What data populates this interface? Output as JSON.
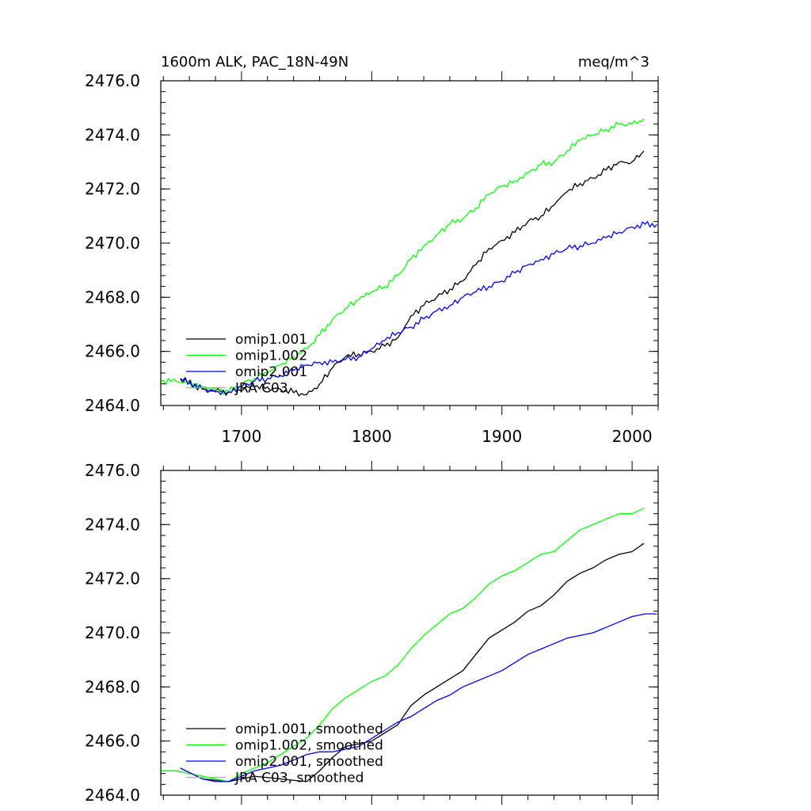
{
  "chart_data": [
    {
      "type": "line",
      "title": "1600m ALK, PAC_18N-49N",
      "units": "meq/m^3",
      "xlabel": "",
      "ylabel": "",
      "xlim": [
        1638,
        2020
      ],
      "ylim": [
        2464.0,
        2476.0
      ],
      "yticks": [
        "2464.0",
        "2466.0",
        "2468.0",
        "2470.0",
        "2472.0",
        "2474.0",
        "2476.0"
      ],
      "xticks": [
        "1700",
        "1800",
        "1900",
        "2000"
      ],
      "show_x_tick_labels": true,
      "legend_position": "bottom-left",
      "series": [
        {
          "name": "omip1.001",
          "color": "#000000",
          "x": [
            1653,
            1670,
            1690,
            1710,
            1730,
            1750,
            1760,
            1770,
            1780,
            1790,
            1800,
            1810,
            1820,
            1830,
            1840,
            1850,
            1860,
            1870,
            1880,
            1890,
            1900,
            1910,
            1920,
            1930,
            1940,
            1950,
            1960,
            1970,
            1980,
            1990,
            2000,
            2009
          ],
          "y": [
            2465.0,
            2464.6,
            2464.5,
            2464.7,
            2464.6,
            2464.4,
            2464.8,
            2465.4,
            2465.8,
            2465.9,
            2466.0,
            2466.2,
            2466.5,
            2467.3,
            2467.7,
            2468.0,
            2468.3,
            2468.6,
            2469.2,
            2469.8,
            2470.1,
            2470.4,
            2470.8,
            2471.0,
            2471.4,
            2471.9,
            2472.2,
            2472.4,
            2472.7,
            2473.0,
            2473.0,
            2473.4
          ]
        },
        {
          "name": "omip1.002",
          "color": "#00ff00",
          "x": [
            1638,
            1650,
            1660,
            1670,
            1680,
            1690,
            1700,
            1710,
            1720,
            1730,
            1740,
            1750,
            1760,
            1770,
            1780,
            1790,
            1800,
            1810,
            1820,
            1830,
            1840,
            1850,
            1860,
            1870,
            1880,
            1890,
            1900,
            1910,
            1920,
            1930,
            1940,
            1950,
            1960,
            1970,
            1980,
            1990,
            2000,
            2009
          ],
          "y": [
            2464.9,
            2464.9,
            2464.8,
            2464.7,
            2464.6,
            2464.5,
            2464.8,
            2465.0,
            2465.2,
            2465.5,
            2465.8,
            2466.1,
            2466.6,
            2467.2,
            2467.6,
            2467.9,
            2468.2,
            2468.4,
            2468.8,
            2469.4,
            2469.9,
            2470.3,
            2470.7,
            2470.9,
            2471.3,
            2471.8,
            2472.1,
            2472.3,
            2472.6,
            2472.9,
            2473.0,
            2473.4,
            2473.8,
            2474.0,
            2474.2,
            2474.4,
            2474.4,
            2474.6
          ]
        },
        {
          "name": "omip2.001",
          "color": "#0000ff",
          "x": [
            1653,
            1670,
            1680,
            1690,
            1700,
            1710,
            1720,
            1730,
            1740,
            1750,
            1760,
            1770,
            1780,
            1790,
            1800,
            1810,
            1820,
            1830,
            1840,
            1850,
            1860,
            1870,
            1880,
            1890,
            1900,
            1910,
            1920,
            1930,
            1940,
            1950,
            1960,
            1970,
            1980,
            1990,
            2000,
            2010,
            2019
          ],
          "y": [
            2465.0,
            2464.6,
            2464.5,
            2464.5,
            2464.7,
            2464.9,
            2465.0,
            2465.1,
            2465.3,
            2465.5,
            2465.6,
            2465.6,
            2465.7,
            2465.8,
            2466.1,
            2466.4,
            2466.7,
            2466.9,
            2467.2,
            2467.5,
            2467.7,
            2468.0,
            2468.2,
            2468.4,
            2468.6,
            2468.9,
            2469.2,
            2469.4,
            2469.6,
            2469.8,
            2469.9,
            2470.0,
            2470.2,
            2470.4,
            2470.6,
            2470.7,
            2470.7
          ]
        },
        {
          "name": "JRA C03",
          "color": "#aaaaaa",
          "x": [],
          "y": []
        }
      ]
    },
    {
      "type": "line",
      "title": "",
      "units": "",
      "xlabel": "",
      "ylabel": "",
      "xlim": [
        1638,
        2020
      ],
      "ylim": [
        2464.0,
        2476.0
      ],
      "yticks": [
        "2464.0",
        "2466.0",
        "2468.0",
        "2470.0",
        "2472.0",
        "2474.0",
        "2476.0"
      ],
      "xticks": [
        "1700",
        "1800",
        "1900",
        "2000"
      ],
      "show_x_tick_labels": false,
      "legend_position": "bottom-left",
      "series": [
        {
          "name": "omip1.001, smoothed",
          "color": "#000000",
          "x": [
            1653,
            1670,
            1690,
            1710,
            1730,
            1750,
            1760,
            1770,
            1780,
            1790,
            1800,
            1810,
            1820,
            1830,
            1840,
            1850,
            1860,
            1870,
            1880,
            1890,
            1900,
            1910,
            1920,
            1930,
            1940,
            1950,
            1960,
            1970,
            1980,
            1990,
            2000,
            2009
          ],
          "y": [
            2465.0,
            2464.6,
            2464.5,
            2464.7,
            2464.6,
            2464.5,
            2464.9,
            2465.4,
            2465.8,
            2465.9,
            2466.0,
            2466.3,
            2466.6,
            2467.3,
            2467.7,
            2468.0,
            2468.3,
            2468.6,
            2469.2,
            2469.8,
            2470.1,
            2470.4,
            2470.8,
            2471.0,
            2471.4,
            2471.9,
            2472.2,
            2472.4,
            2472.7,
            2472.9,
            2473.0,
            2473.3
          ]
        },
        {
          "name": "omip1.002, smoothed",
          "color": "#00ff00",
          "x": [
            1638,
            1650,
            1660,
            1670,
            1680,
            1690,
            1700,
            1710,
            1720,
            1730,
            1740,
            1750,
            1760,
            1770,
            1780,
            1790,
            1800,
            1810,
            1820,
            1830,
            1840,
            1850,
            1860,
            1870,
            1880,
            1890,
            1900,
            1910,
            1920,
            1930,
            1940,
            1950,
            1960,
            1970,
            1980,
            1990,
            2000,
            2009
          ],
          "y": [
            2464.9,
            2464.9,
            2464.8,
            2464.7,
            2464.6,
            2464.5,
            2464.8,
            2465.0,
            2465.2,
            2465.5,
            2465.8,
            2466.1,
            2466.6,
            2467.2,
            2467.6,
            2467.9,
            2468.2,
            2468.4,
            2468.8,
            2469.4,
            2469.9,
            2470.3,
            2470.7,
            2470.9,
            2471.3,
            2471.8,
            2472.1,
            2472.3,
            2472.6,
            2472.9,
            2473.0,
            2473.4,
            2473.8,
            2474.0,
            2474.2,
            2474.4,
            2474.4,
            2474.6
          ]
        },
        {
          "name": "omip2.001, smoothed",
          "color": "#0000ff",
          "x": [
            1653,
            1670,
            1680,
            1690,
            1700,
            1710,
            1720,
            1730,
            1740,
            1750,
            1760,
            1770,
            1780,
            1790,
            1800,
            1810,
            1820,
            1830,
            1840,
            1850,
            1860,
            1870,
            1880,
            1890,
            1900,
            1910,
            1920,
            1930,
            1940,
            1950,
            1960,
            1970,
            1980,
            1990,
            2000,
            2010,
            2019
          ],
          "y": [
            2465.0,
            2464.6,
            2464.5,
            2464.5,
            2464.7,
            2464.9,
            2465.0,
            2465.1,
            2465.3,
            2465.5,
            2465.6,
            2465.6,
            2465.7,
            2465.8,
            2466.1,
            2466.4,
            2466.7,
            2466.9,
            2467.2,
            2467.5,
            2467.7,
            2468.0,
            2468.2,
            2468.4,
            2468.6,
            2468.9,
            2469.2,
            2469.4,
            2469.6,
            2469.8,
            2469.9,
            2470.0,
            2470.2,
            2470.4,
            2470.6,
            2470.7,
            2470.7
          ]
        },
        {
          "name": "JRA C03, smoothed",
          "color": "#aaaaaa",
          "x": [],
          "y": []
        }
      ]
    }
  ]
}
